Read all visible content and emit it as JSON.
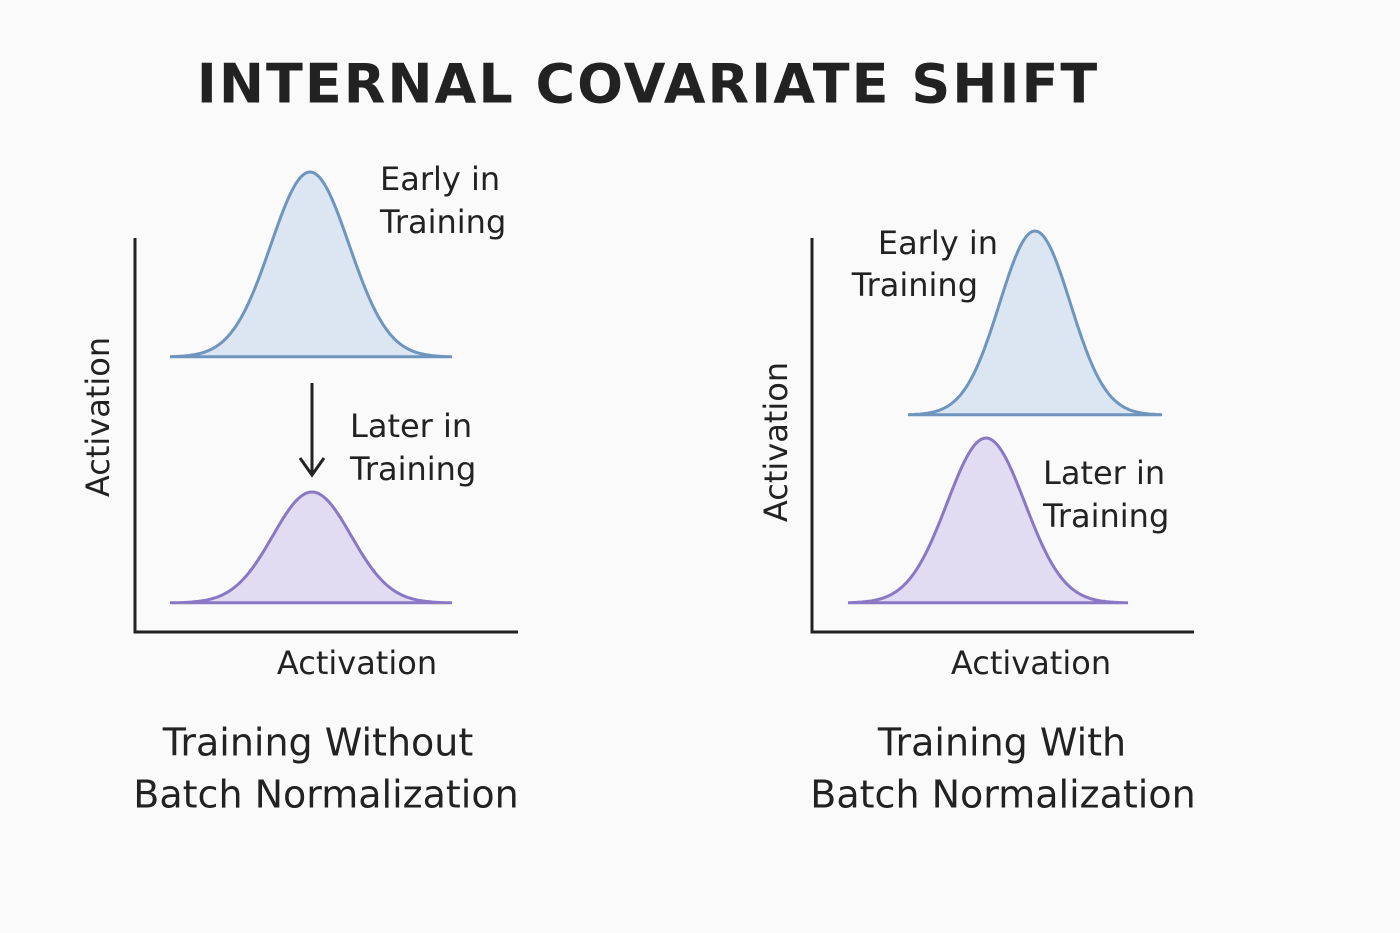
{
  "title": "INTERNAL COVARIATE SHIFT",
  "panels": [
    {
      "y_axis_label": "Activation",
      "x_axis_label": "Activation",
      "curves": [
        {
          "label": [
            "Early in",
            "Training"
          ]
        },
        {
          "label": [
            "Later in",
            "Training"
          ]
        }
      ],
      "caption": [
        "Training Without",
        "Batch Normalization"
      ]
    },
    {
      "y_axis_label": "Activation",
      "x_axis_label": "Activation",
      "curves": [
        {
          "label": [
            "Early in",
            "Training"
          ]
        },
        {
          "label": [
            "Later in",
            "Training"
          ]
        }
      ],
      "caption": [
        "Training With",
        "Batch Normalization"
      ]
    }
  ]
}
